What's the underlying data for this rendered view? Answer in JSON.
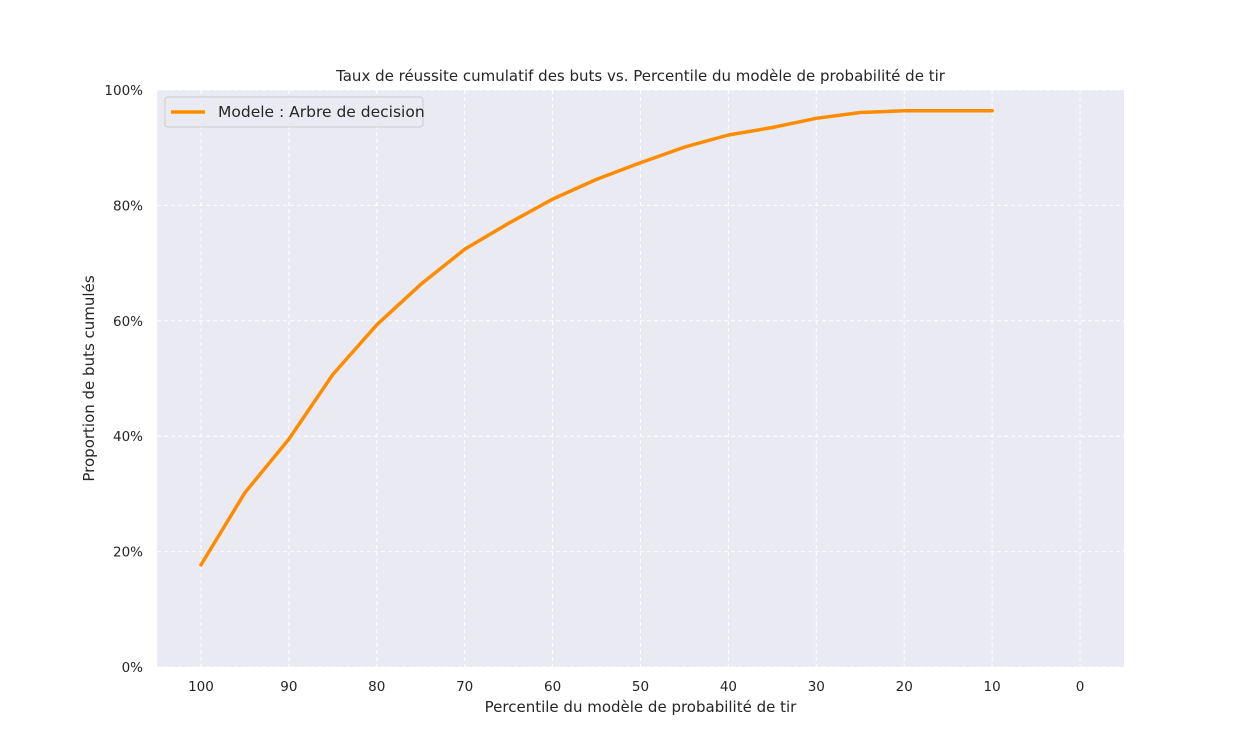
{
  "chart_data": {
    "type": "line",
    "title": "Taux de réussite cumulatif des buts vs. Percentile du modèle de probabilité de tir",
    "xlabel": "Percentile du modèle de probabilité de tir",
    "ylabel": "Proportion de buts cumulés",
    "xlim": [
      105,
      -5
    ],
    "ylim": [
      0,
      1.0
    ],
    "x_ticks": [
      100,
      90,
      80,
      70,
      60,
      50,
      40,
      30,
      20,
      10,
      0
    ],
    "x_tick_labels": [
      "100",
      "90",
      "80",
      "70",
      "60",
      "50",
      "40",
      "30",
      "20",
      "10",
      "0"
    ],
    "y_ticks": [
      0,
      0.2,
      0.4,
      0.6,
      0.8,
      1.0
    ],
    "y_tick_labels": [
      "0%",
      "20%",
      "40%",
      "60%",
      "80%",
      "100%"
    ],
    "grid": true,
    "grid_style": "dashed",
    "legend_position": "top-left",
    "series": [
      {
        "name": "Modele : Arbre de decision",
        "color": "#ff8c00",
        "x": [
          100,
          95,
          90,
          85,
          80,
          75,
          70,
          65,
          60,
          55,
          50,
          45,
          40,
          35,
          30,
          25,
          20,
          15,
          10
        ],
        "y": [
          0.177,
          0.302,
          0.395,
          0.507,
          0.593,
          0.663,
          0.724,
          0.769,
          0.811,
          0.845,
          0.874,
          0.901,
          0.922,
          0.935,
          0.951,
          0.961,
          0.964,
          0.964,
          0.964
        ]
      }
    ],
    "colors": {
      "plot_background": "#eaeaf2",
      "grid": "#ffffff",
      "text": "#262626"
    }
  }
}
